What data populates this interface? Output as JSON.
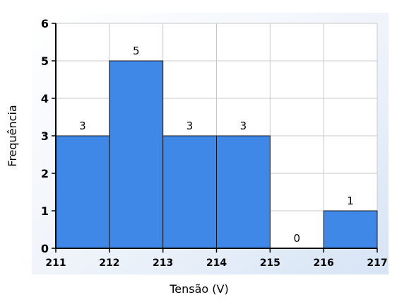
{
  "chart_data": {
    "type": "bar",
    "xlabel": "Tensão (V)",
    "ylabel": "Frequência",
    "bin_edges": [
      211,
      212,
      213,
      214,
      215,
      216,
      217
    ],
    "x_tick_labels": [
      "211",
      "212",
      "213",
      "214",
      "215",
      "216",
      "217"
    ],
    "values": [
      3,
      5,
      3,
      3,
      0,
      1
    ],
    "value_labels": [
      "3",
      "5",
      "3",
      "3",
      "0",
      "1"
    ],
    "y_tick_labels": [
      "0",
      "1",
      "2",
      "3",
      "4",
      "5",
      "6"
    ],
    "ylim": [
      0,
      6
    ],
    "xlim": [
      211,
      217
    ],
    "grid": true,
    "legend": false,
    "colors": {
      "bar": "#3f88e8",
      "bar_edge": "#1a1a1a",
      "frame_background": "#dfe9f6",
      "plot_background": "#ffffff",
      "grid": "#c8c8c8"
    }
  }
}
